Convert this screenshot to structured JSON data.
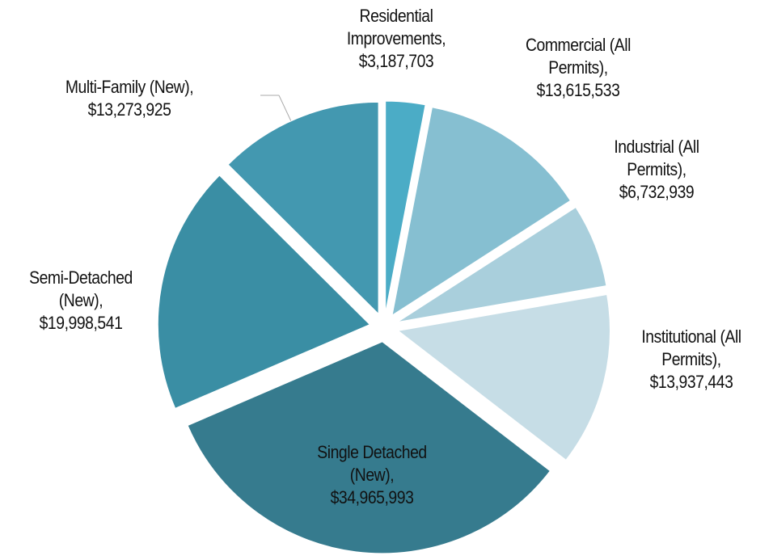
{
  "chart_data": {
    "type": "pie",
    "categories": [
      "Residential Improvements",
      "Commercial (All Permits)",
      "Industrial (All Permits)",
      "Institutional (All Permits)",
      "Single Detached (New)",
      "Semi-Detached (New)",
      "Multi-Family (New)"
    ],
    "values": [
      3187703,
      13615533,
      6732939,
      13937443,
      34965993,
      19998541,
      13273925
    ],
    "value_labels": [
      "$3,187,703",
      "$13,615,533",
      "$6,732,939",
      "$13,937,443",
      "$34,965,993",
      "$19,998,541",
      "$13,273,925"
    ],
    "label_separator": ",",
    "colors": [
      "#4bacc6",
      "#86bfd1",
      "#a9cfdc",
      "#c6dde6",
      "#367b8e",
      "#3a8ea4",
      "#4398b0"
    ]
  }
}
